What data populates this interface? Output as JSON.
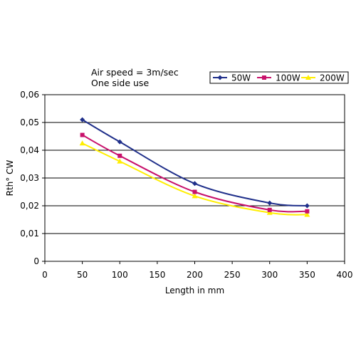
{
  "chart_data": {
    "type": "line",
    "title": "",
    "annotations": [
      "Air speed = 3m/sec",
      "One side use"
    ],
    "xlabel": "Length in mm",
    "ylabel": "Rth° CW",
    "xlim": [
      0,
      400
    ],
    "ylim": [
      0,
      0.06
    ],
    "x_ticks": [
      "0",
      "50",
      "100",
      "150",
      "200",
      "250",
      "300",
      "350",
      "400"
    ],
    "y_ticks": [
      "0",
      "0,01",
      "0,02",
      "0,03",
      "0,04",
      "0,05",
      "0,06"
    ],
    "grid": "horizontal",
    "legend_position": "top-right",
    "x": [
      50,
      100,
      200,
      300,
      350
    ],
    "series": [
      {
        "name": "50W",
        "color": "#1f2f8a",
        "marker": "diamond",
        "values": [
          0.051,
          0.043,
          0.028,
          0.021,
          0.02
        ]
      },
      {
        "name": "100W",
        "color": "#c8116b",
        "marker": "square",
        "values": [
          0.0455,
          0.038,
          0.025,
          0.0185,
          0.018
        ]
      },
      {
        "name": "200W",
        "color": "#ffee00",
        "marker": "triangle",
        "values": [
          0.0425,
          0.036,
          0.0235,
          0.0175,
          0.0168
        ]
      }
    ]
  }
}
